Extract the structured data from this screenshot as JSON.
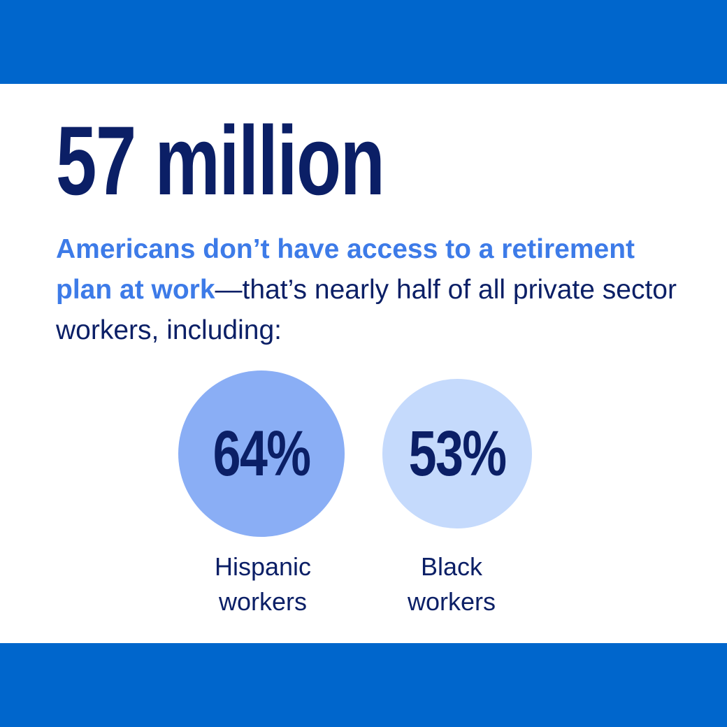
{
  "headline": "57 million",
  "body": {
    "emphasis": "Americans don’t have access to a retirement plan at work",
    "rest": "—that’s nearly half of all private sector workers, including:"
  },
  "stats": [
    {
      "value": "64%",
      "label": [
        "Hispanic",
        "workers"
      ]
    },
    {
      "value": "53%",
      "label": [
        "Black",
        "workers"
      ]
    }
  ]
}
